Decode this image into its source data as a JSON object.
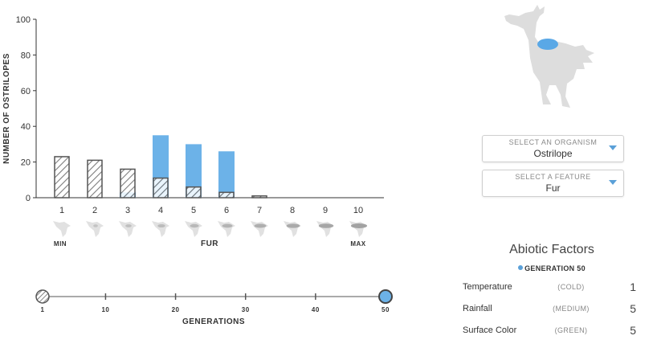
{
  "chart_data": {
    "type": "bar",
    "categories": [
      "1",
      "2",
      "3",
      "4",
      "5",
      "6",
      "7",
      "8",
      "9",
      "10"
    ],
    "series": [
      {
        "name": "",
        "pattern": "hatched",
        "values": [
          23,
          21,
          16,
          11,
          6,
          3,
          1,
          0,
          0,
          0
        ]
      },
      {
        "name": "",
        "color": "#6cb2e8",
        "values": [
          0,
          0,
          3,
          35,
          30,
          26,
          0,
          0,
          0,
          0
        ]
      }
    ],
    "ylabel": "NUMBER OF OSTRILOPES",
    "ylim": [
      0,
      100
    ],
    "yticks": [
      0,
      20,
      40,
      60,
      80,
      100
    ],
    "scale_min_label": "MIN",
    "scale_max_label": "MAX",
    "feature_label": "FUR",
    "grid": false
  },
  "generation_slider": {
    "ticks": [
      "1",
      "10",
      "20",
      "30",
      "40",
      "50"
    ],
    "label": "GENERATIONS",
    "start_value": 1,
    "current_value": 50,
    "max_value": 50
  },
  "selectors": {
    "organism": {
      "label": "SELECT AN ORGANISM",
      "value": "Ostrilope"
    },
    "feature": {
      "label": "SELECT A FEATURE",
      "value": "Fur"
    }
  },
  "abiotic": {
    "title": "Abiotic Factors",
    "generation_label": "GENERATION 50",
    "factors": [
      {
        "name": "Temperature",
        "level": "(COLD)",
        "value": "1"
      },
      {
        "name": "Rainfall",
        "level": "(MEDIUM)",
        "value": "5"
      },
      {
        "name": "Surface Color",
        "level": "(GREEN)",
        "value": "5"
      }
    ]
  },
  "colors": {
    "blue": "#6cb2e8",
    "hatch": "#666666",
    "creature": "#dddddd",
    "creature_highlight": "#5aa8e6"
  },
  "icons": {
    "organism_illustration": "ostrilope-icon",
    "category_icon": "ostrilope-head-icon"
  }
}
